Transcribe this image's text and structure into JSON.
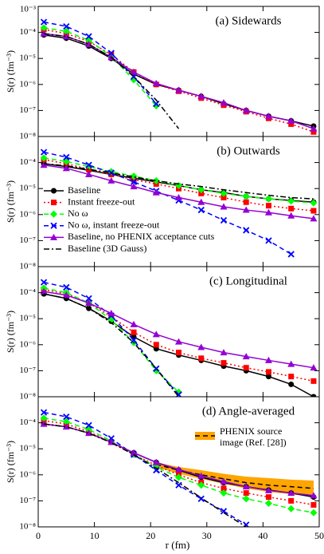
{
  "chart_data": {
    "type": "line",
    "log_y": true,
    "xlabel": "r (fm)",
    "ylabel": "S(r) (fm⁻³)",
    "xlim": [
      0,
      50
    ],
    "xticks": [
      0,
      10,
      20,
      30,
      40,
      50
    ],
    "x": [
      1,
      5,
      9,
      13,
      17,
      21,
      25,
      29,
      33,
      37,
      41,
      45,
      49
    ],
    "series": [
      {
        "name": "Baseline",
        "color": "#000000",
        "marker": "circle",
        "dash": "solid"
      },
      {
        "name": "Instant freeze-out",
        "color": "#ff0000",
        "marker": "square",
        "dash": "dotted"
      },
      {
        "name": "No ω",
        "color": "#00ff00",
        "marker": "diamond",
        "dash": "dashed"
      },
      {
        "name": "No ω, instant freeze-out",
        "color": "#0000ff",
        "marker": "x",
        "dash": "dashed"
      },
      {
        "name": "Baseline, no PHENIX acceptance cuts",
        "color": "#9400d3",
        "marker": "triangle",
        "dash": "solid"
      },
      {
        "name": "Baseline (3D Gauss)",
        "color": "#000000",
        "marker": null,
        "dash": "dashdot"
      }
    ],
    "panels": [
      {
        "title": "(a) Sidewards",
        "ylim": [
          1e-08,
          0.001
        ],
        "yticks": [
          {
            "value": 0.001,
            "label": "10⁻³"
          },
          {
            "value": 0.0001,
            "label": "10⁻⁴"
          },
          {
            "value": 1e-05,
            "label": "10⁻⁵"
          },
          {
            "value": 1e-06,
            "label": "10⁻⁶"
          },
          {
            "value": 1e-07,
            "label": "10⁻⁷"
          },
          {
            "value": 1e-08,
            "label": "10⁻⁸"
          }
        ],
        "values": [
          [
            8e-05,
            6e-05,
            3e-05,
            1e-05,
            2.5e-06,
            1e-06,
            6e-07,
            3.5e-07,
            1.8e-07,
            1e-07,
            6e-08,
            4e-08,
            2.5e-08
          ],
          [
            0.00013,
            9e-05,
            4.5e-05,
            1.4e-05,
            3e-06,
            1e-06,
            5.5e-07,
            3e-07,
            1.6e-07,
            9e-08,
            5e-08,
            3e-08,
            1.5e-08
          ],
          [
            0.00015,
            0.00011,
            5e-05,
            1.2e-05,
            1.5e-06,
            1.5e-07,
            null,
            null,
            null,
            null,
            null,
            null,
            null
          ],
          [
            0.00025,
            0.00017,
            7e-05,
            1.6e-05,
            2e-06,
            1.8e-07,
            null,
            null,
            null,
            null,
            null,
            null,
            null
          ],
          [
            9e-05,
            7e-05,
            3.5e-05,
            1.1e-05,
            3e-06,
            1.1e-06,
            6e-07,
            3.5e-07,
            2e-07,
            1e-07,
            6e-08,
            4e-08,
            2e-08
          ],
          [
            9e-05,
            7e-05,
            3.5e-05,
            1.1e-05,
            2e-06,
            2.5e-07,
            2e-08,
            null,
            null,
            null,
            null,
            null,
            null
          ]
        ]
      },
      {
        "title": "(b) Outwards",
        "ylim": [
          1e-08,
          0.001
        ],
        "yticks": [
          {
            "value": 0.0001,
            "label": "10⁻⁴"
          },
          {
            "value": 1e-05,
            "label": "10⁻⁵"
          },
          {
            "value": 1e-06,
            "label": "10⁻⁶"
          },
          {
            "value": 1e-07,
            "label": "10⁻⁷"
          },
          {
            "value": 1e-08,
            "label": "10⁻⁸"
          }
        ],
        "values": [
          [
            9e-05,
            7e-05,
            5e-05,
            3.5e-05,
            2.5e-05,
            1.8e-05,
            1.3e-05,
            9e-06,
            7e-06,
            5e-06,
            4e-06,
            3.5e-06,
            3e-06
          ],
          [
            0.00013,
            9e-05,
            5.5e-05,
            3.5e-05,
            2.2e-05,
            1.5e-05,
            1e-05,
            6.5e-06,
            4.5e-06,
            3e-06,
            2.2e-06,
            1.7e-06,
            1.4e-06
          ],
          [
            0.00015,
            0.00011,
            7e-05,
            4.5e-05,
            3e-05,
            2e-05,
            1.3e-05,
            9e-06,
            6.5e-06,
            5e-06,
            4e-06,
            3.3e-06,
            2.8e-06
          ],
          [
            0.00025,
            0.00016,
            8e-05,
            4e-05,
            1.8e-05,
            8e-06,
            3.5e-06,
            1.5e-06,
            6e-07,
            2.5e-07,
            1e-07,
            3e-08,
            null
          ],
          [
            8e-05,
            6e-05,
            3.5e-05,
            2e-05,
            1.2e-05,
            7e-06,
            4.5e-06,
            3e-06,
            2e-06,
            1.5e-06,
            1.2e-06,
            9e-07,
            7e-07
          ],
          [
            9e-05,
            7.5e-05,
            5.5e-05,
            4e-05,
            2.8e-05,
            2e-05,
            1.5e-05,
            1.2e-05,
            9e-06,
            7e-06,
            5.5e-06,
            4.5e-06,
            4e-06
          ]
        ]
      },
      {
        "title": "(c) Longitudinal",
        "ylim": [
          1e-08,
          0.001
        ],
        "yticks": [
          {
            "value": 0.0001,
            "label": "10⁻⁴"
          },
          {
            "value": 1e-05,
            "label": "10⁻⁵"
          },
          {
            "value": 1e-06,
            "label": "10⁻⁶"
          },
          {
            "value": 1e-07,
            "label": "10⁻⁷"
          },
          {
            "value": 1e-08,
            "label": "10⁻⁸"
          }
        ],
        "values": [
          [
            9e-05,
            6e-05,
            2.5e-05,
            8e-06,
            2e-06,
            7e-07,
            4e-07,
            2.5e-07,
            1.5e-07,
            1e-07,
            6e-08,
            3e-08,
            1e-08
          ],
          [
            0.00013,
            9e-05,
            4e-05,
            1.2e-05,
            3e-06,
            1e-06,
            5e-07,
            3e-07,
            2e-07,
            1.3e-07,
            9e-08,
            6e-08,
            4e-08
          ],
          [
            0.00015,
            0.0001,
            4e-05,
            9e-06,
            1.2e-06,
            1e-07,
            1.5e-08,
            null,
            null,
            null,
            null,
            null,
            null
          ],
          [
            0.00025,
            0.00016,
            6e-05,
            1.3e-05,
            1.5e-06,
            1.2e-07,
            1.2e-08,
            null,
            null,
            null,
            null,
            null,
            null
          ],
          [
            0.00011,
            8e-05,
            4e-05,
            1.6e-05,
            6e-06,
            2.5e-06,
            1.3e-06,
            8e-07,
            5e-07,
            3.5e-07,
            2.5e-07,
            1.8e-07,
            1.3e-07
          ],
          [
            9e-05,
            6e-05,
            2.5e-05,
            7e-06,
            1.2e-06,
            1.2e-07,
            1e-08,
            null,
            null,
            null,
            null,
            null,
            null
          ]
        ]
      },
      {
        "title": "(d) Angle-averaged",
        "ylim": [
          1e-08,
          0.001
        ],
        "yticks": [
          {
            "value": 0.0001,
            "label": "10⁻⁴"
          },
          {
            "value": 1e-05,
            "label": "10⁻⁵"
          },
          {
            "value": 1e-06,
            "label": "10⁻⁶"
          },
          {
            "value": 1e-07,
            "label": "10⁻⁷"
          },
          {
            "value": 1e-08,
            "label": "10⁻⁸"
          }
        ],
        "values": [
          [
            9e-05,
            7e-05,
            4e-05,
            1.8e-05,
            7e-06,
            3e-06,
            1.5e-06,
            8e-07,
            5e-07,
            3.5e-07,
            2.6e-07,
            2e-07,
            1.4e-07
          ],
          [
            0.00012,
            9e-05,
            4.5e-05,
            1.8e-05,
            6e-06,
            2.3e-06,
            1e-06,
            5e-07,
            3e-07,
            2e-07,
            1.4e-07,
            1e-07,
            7e-08
          ],
          [
            0.00015,
            0.00011,
            5.5e-05,
            2e-05,
            6e-06,
            2e-06,
            8e-07,
            4e-07,
            2e-07,
            1.2e-07,
            8e-08,
            5e-08,
            3.5e-08
          ],
          [
            0.00025,
            0.00017,
            8e-05,
            2.5e-05,
            6e-06,
            1.5e-06,
            4e-07,
            1.2e-07,
            4e-08,
            1.2e-08,
            null,
            null,
            null
          ],
          [
            9e-05,
            7e-05,
            4e-05,
            1.8e-05,
            7e-06,
            3e-06,
            1.6e-06,
            9e-07,
            5.5e-07,
            3.5e-07,
            2.5e-07,
            2e-07,
            1.6e-07
          ],
          [
            9e-05,
            7e-05,
            4e-05,
            1.7e-05,
            6e-06,
            1.8e-06,
            5e-07,
            1.3e-07,
            3.5e-08,
            1e-08,
            null,
            null,
            null
          ]
        ]
      }
    ],
    "phenix": {
      "name_lines": [
        "PHENIX source",
        "image (Ref. [28])"
      ],
      "color": "#ffa500",
      "x": [
        21,
        25,
        29,
        33,
        37,
        41,
        45,
        49
      ],
      "values": [
        2.5e-06,
        1.5e-06,
        1e-06,
        7e-07,
        5e-07,
        4e-07,
        3.5e-07,
        3e-07
      ],
      "lower": [
        2e-06,
        1.1e-06,
        7e-07,
        4.5e-07,
        3e-07,
        2.2e-07,
        1.8e-07,
        1.4e-07
      ],
      "upper": [
        3e-06,
        2e-06,
        1.5e-06,
        1.1e-06,
        8.5e-07,
        7.5e-07,
        6.5e-07,
        6e-07
      ]
    }
  }
}
